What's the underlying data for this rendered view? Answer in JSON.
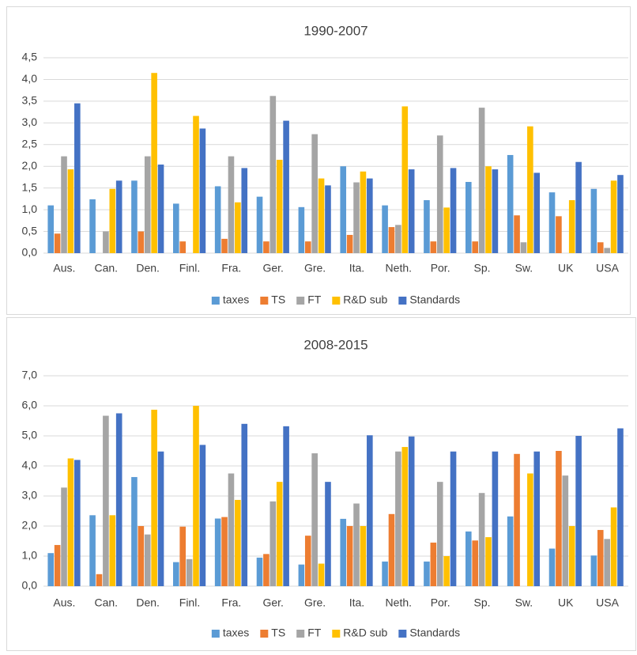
{
  "chart_data": [
    {
      "type": "bar",
      "title": "1990-2007",
      "categories": [
        "Aus.",
        "Can.",
        "Den.",
        "Finl.",
        "Fra.",
        "Ger.",
        "Gre.",
        "Ita.",
        "Neth.",
        "Por.",
        "Sp.",
        "Sw.",
        "UK",
        "USA"
      ],
      "series": [
        {
          "name": "taxes",
          "color": "#5b9bd5",
          "values": [
            1.1,
            1.24,
            1.67,
            1.14,
            1.54,
            1.3,
            1.06,
            2.0,
            1.1,
            1.22,
            1.64,
            2.26,
            1.4,
            1.48
          ]
        },
        {
          "name": "TS",
          "color": "#ed7d31",
          "values": [
            0.45,
            0,
            0.5,
            0.27,
            0.33,
            0.27,
            0.27,
            0.42,
            0.6,
            0.27,
            0.27,
            0.87,
            0.85,
            0.25
          ]
        },
        {
          "name": "FT",
          "color": "#a5a5a5",
          "values": [
            2.23,
            0.5,
            2.23,
            0,
            2.23,
            3.62,
            2.74,
            1.63,
            0.65,
            2.71,
            3.35,
            0.25,
            0,
            0.12
          ]
        },
        {
          "name": "R&D sub",
          "color": "#ffc000",
          "values": [
            1.93,
            1.48,
            4.15,
            3.16,
            1.17,
            2.15,
            1.72,
            1.88,
            3.38,
            1.05,
            2.0,
            2.92,
            1.22,
            1.67
          ]
        },
        {
          "name": "Standards",
          "color": "#4472c4",
          "values": [
            3.45,
            1.67,
            2.04,
            2.87,
            1.96,
            3.05,
            1.56,
            1.72,
            1.93,
            1.96,
            1.93,
            1.85,
            2.1,
            1.8
          ]
        }
      ],
      "ylim": [
        0,
        4.5
      ],
      "yticks": [
        {
          "value": 0,
          "label": "0,0"
        },
        {
          "value": 0.5,
          "label": "0,5"
        },
        {
          "value": 1,
          "label": "1,0"
        },
        {
          "value": 1.5,
          "label": "1,5"
        },
        {
          "value": 2,
          "label": "2,0"
        },
        {
          "value": 2.5,
          "label": "2,5"
        },
        {
          "value": 3,
          "label": "3,0"
        },
        {
          "value": 3.5,
          "label": "3,5"
        },
        {
          "value": 4,
          "label": "4,0"
        },
        {
          "value": 4.5,
          "label": "4,5"
        }
      ],
      "legend": "bottom"
    },
    {
      "type": "bar",
      "title": "2008-2015",
      "categories": [
        "Aus.",
        "Can.",
        "Den.",
        "Finl.",
        "Fra.",
        "Ger.",
        "Gre.",
        "Ita.",
        "Neth.",
        "Por.",
        "Sp.",
        "Sw.",
        "UK",
        "USA"
      ],
      "series": [
        {
          "name": "taxes",
          "color": "#5b9bd5",
          "values": [
            1.1,
            2.36,
            3.63,
            0.8,
            2.25,
            0.95,
            0.72,
            2.24,
            0.82,
            0.82,
            1.82,
            2.32,
            1.25,
            1.02
          ]
        },
        {
          "name": "TS",
          "color": "#ed7d31",
          "values": [
            1.37,
            0.4,
            2.0,
            1.98,
            2.3,
            1.07,
            1.68,
            2.0,
            2.4,
            1.45,
            1.52,
            4.4,
            4.5,
            1.87
          ]
        },
        {
          "name": "FT",
          "color": "#a5a5a5",
          "values": [
            3.28,
            5.67,
            1.72,
            0.9,
            3.75,
            2.82,
            4.42,
            2.75,
            4.48,
            3.47,
            3.1,
            0,
            3.68,
            1.57
          ]
        },
        {
          "name": "R&D sub",
          "color": "#ffc000",
          "values": [
            4.25,
            2.36,
            5.87,
            6.0,
            2.87,
            3.47,
            0.75,
            2.0,
            4.63,
            1.0,
            1.63,
            3.75,
            2.0,
            2.62
          ]
        },
        {
          "name": "Standards",
          "color": "#4472c4",
          "values": [
            4.2,
            5.75,
            4.48,
            4.7,
            5.4,
            5.32,
            3.47,
            5.02,
            4.98,
            4.48,
            4.48,
            4.48,
            5.0,
            5.25
          ]
        }
      ],
      "ylim": [
        0,
        7
      ],
      "yticks": [
        {
          "value": 0,
          "label": "0,0"
        },
        {
          "value": 1,
          "label": "1,0"
        },
        {
          "value": 2,
          "label": "2,0"
        },
        {
          "value": 3,
          "label": "3,0"
        },
        {
          "value": 4,
          "label": "4,0"
        },
        {
          "value": 5,
          "label": "5,0"
        },
        {
          "value": 6,
          "label": "6,0"
        },
        {
          "value": 7,
          "label": "7,0"
        }
      ],
      "legend": "bottom"
    }
  ]
}
